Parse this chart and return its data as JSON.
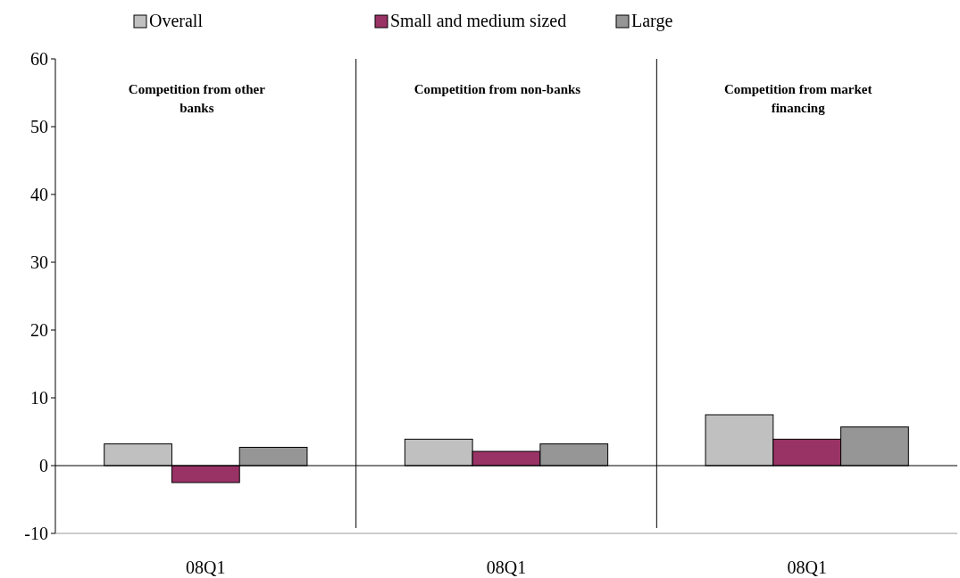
{
  "chart_data": {
    "type": "bar",
    "categories": [
      "08Q1",
      "08Q1",
      "08Q1"
    ],
    "legend": "top",
    "ylim": [
      -10,
      60
    ],
    "yticks": [
      -10,
      0,
      10,
      20,
      30,
      40,
      50,
      60
    ],
    "annotations": [
      "Competition from other banks",
      "Competition from non-banks",
      "Competition from market financing"
    ],
    "series": [
      {
        "name": "Overall",
        "color": "#c0c0c0",
        "values": [
          3.2,
          3.9,
          7.5
        ]
      },
      {
        "name": "Small and medium sized",
        "color": "#993366",
        "values": [
          -2.5,
          2.1,
          3.9
        ]
      },
      {
        "name": "Large",
        "color": "#969696",
        "values": [
          2.7,
          3.2,
          5.7
        ]
      }
    ]
  }
}
